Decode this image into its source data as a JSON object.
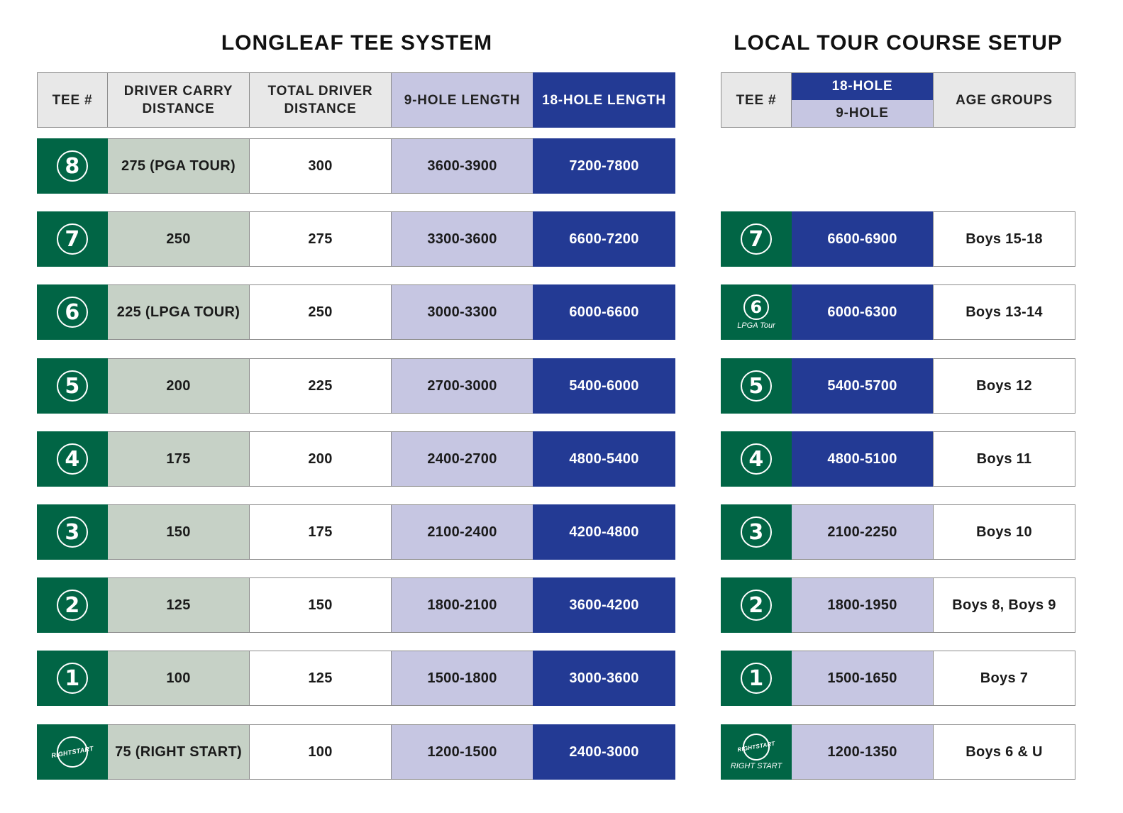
{
  "titles": {
    "left": "LONGLEAF TEE SYSTEM",
    "right": "LOCAL TOUR COURSE SETUP"
  },
  "left_headers": {
    "tee": "TEE #",
    "carry_line1": "DRIVER CARRY",
    "carry_line2": "DISTANCE",
    "total_line1": "TOTAL DRIVER",
    "total_line2": "DISTANCE",
    "nine": "9-HOLE LENGTH",
    "eighteen": "18-HOLE LENGTH"
  },
  "right_headers": {
    "tee": "TEE #",
    "eighteen": "18-HOLE",
    "nine": "9-HOLE",
    "age": "AGE GROUPS"
  },
  "left_rows": [
    {
      "tee": "8",
      "carry": "275 (PGA TOUR)",
      "total": "300",
      "nine": "3600-3900",
      "eighteen": "7200-7800"
    },
    {
      "tee": "7",
      "carry": "250",
      "total": "275",
      "nine": "3300-3600",
      "eighteen": "6600-7200"
    },
    {
      "tee": "6",
      "carry": "225 (LPGA TOUR)",
      "total": "250",
      "nine": "3000-3300",
      "eighteen": "6000-6600"
    },
    {
      "tee": "5",
      "carry": "200",
      "total": "225",
      "nine": "2700-3000",
      "eighteen": "5400-6000"
    },
    {
      "tee": "4",
      "carry": "175",
      "total": "200",
      "nine": "2400-2700",
      "eighteen": "4800-5400"
    },
    {
      "tee": "3",
      "carry": "150",
      "total": "175",
      "nine": "2100-2400",
      "eighteen": "4200-4800"
    },
    {
      "tee": "2",
      "carry": "125",
      "total": "150",
      "nine": "1800-2100",
      "eighteen": "3600-4200"
    },
    {
      "tee": "1",
      "carry": "100",
      "total": "125",
      "nine": "1500-1800",
      "eighteen": "3000-3600"
    },
    {
      "tee": "RIGHT START",
      "carry": "75 (RIGHT START)",
      "total": "100",
      "nine": "1200-1500",
      "eighteen": "2400-3000"
    }
  ],
  "right_rows": [
    {
      "tee": "7",
      "sub": "",
      "length": "6600-6900",
      "kind": "18-hole",
      "age": "Boys 15-18"
    },
    {
      "tee": "6",
      "sub": "LPGA Tour",
      "length": "6000-6300",
      "kind": "18-hole",
      "age": "Boys 13-14"
    },
    {
      "tee": "5",
      "sub": "",
      "length": "5400-5700",
      "kind": "18-hole",
      "age": "Boys 12"
    },
    {
      "tee": "4",
      "sub": "",
      "length": "4800-5100",
      "kind": "18-hole",
      "age": "Boys 11"
    },
    {
      "tee": "3",
      "sub": "",
      "length": "2100-2250",
      "kind": "9-hole",
      "age": "Boys 10"
    },
    {
      "tee": "2",
      "sub": "",
      "length": "1800-1950",
      "kind": "9-hole",
      "age": "Boys 8, Boys 9"
    },
    {
      "tee": "1",
      "sub": "",
      "length": "1500-1650",
      "kind": "9-hole",
      "age": "Boys 7"
    },
    {
      "tee": "RIGHT START",
      "sub": "RIGHT START",
      "length": "1200-1350",
      "kind": "9-hole",
      "age": "Boys 6 & U"
    }
  ],
  "right_start_logo": {
    "line1": "RIGHT",
    "line2": "START"
  },
  "colors": {
    "tee_green": "#016545",
    "carry_sage": "#c6d1c6",
    "nine_lavender": "#c6c6e2",
    "eighteen_navy": "#233a94",
    "header_gray": "#e8e8e8"
  }
}
